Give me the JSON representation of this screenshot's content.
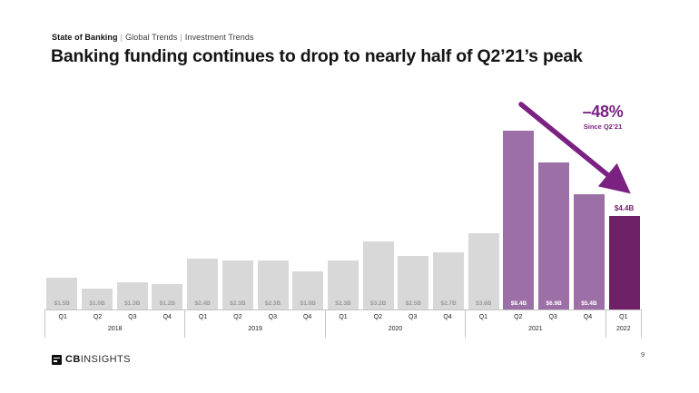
{
  "header": {
    "breadcrumb": {
      "bold": "State of Banking",
      "separator": "|",
      "items": [
        "Global Trends",
        "Investment Trends"
      ]
    },
    "title": "Banking funding continues to drop to nearly half of Q2’21’s peak"
  },
  "annotation": {
    "percent": "–48%",
    "caption": "Since Q2’21",
    "color": "#7a2182"
  },
  "footer": {
    "logo_bold": "CB",
    "logo_light": "INSIGHTS",
    "page_number": "9"
  },
  "chart_data": {
    "type": "bar",
    "unit": "USD billions",
    "ylim": [
      0,
      8.4
    ],
    "grid": false,
    "legend": "none",
    "categories": [
      "Q1 2018",
      "Q2 2018",
      "Q3 2018",
      "Q4 2018",
      "Q1 2019",
      "Q2 2019",
      "Q3 2019",
      "Q4 2019",
      "Q1 2020",
      "Q2 2020",
      "Q3 2020",
      "Q4 2020",
      "Q1 2021",
      "Q2 2021",
      "Q3 2021",
      "Q4 2021",
      "Q1 2022"
    ],
    "values": [
      1.5,
      1.0,
      1.3,
      1.2,
      2.4,
      2.3,
      2.3,
      1.8,
      2.3,
      3.2,
      2.5,
      2.7,
      3.6,
      8.4,
      6.9,
      5.4,
      4.4
    ],
    "bars": [
      {
        "year": "2018",
        "quarter": "Q1",
        "label": "$1.5B",
        "value": 1.5,
        "style": "gray"
      },
      {
        "year": "2018",
        "quarter": "Q2",
        "label": "$1.0B",
        "value": 1.0,
        "style": "gray"
      },
      {
        "year": "2018",
        "quarter": "Q3",
        "label": "$1.3B",
        "value": 1.3,
        "style": "gray"
      },
      {
        "year": "2018",
        "quarter": "Q4",
        "label": "$1.2B",
        "value": 1.2,
        "style": "gray"
      },
      {
        "year": "2019",
        "quarter": "Q1",
        "label": "$2.4B",
        "value": 2.4,
        "style": "gray"
      },
      {
        "year": "2019",
        "quarter": "Q2",
        "label": "$2.3B",
        "value": 2.3,
        "style": "gray"
      },
      {
        "year": "2019",
        "quarter": "Q3",
        "label": "$2.3B",
        "value": 2.3,
        "style": "gray"
      },
      {
        "year": "2019",
        "quarter": "Q4",
        "label": "$1.8B",
        "value": 1.8,
        "style": "gray"
      },
      {
        "year": "2020",
        "quarter": "Q1",
        "label": "$2.3B",
        "value": 2.3,
        "style": "gray"
      },
      {
        "year": "2020",
        "quarter": "Q2",
        "label": "$3.2B",
        "value": 3.2,
        "style": "gray"
      },
      {
        "year": "2020",
        "quarter": "Q3",
        "label": "$2.5B",
        "value": 2.5,
        "style": "gray"
      },
      {
        "year": "2020",
        "quarter": "Q4",
        "label": "$2.7B",
        "value": 2.7,
        "style": "gray"
      },
      {
        "year": "2021",
        "quarter": "Q1",
        "label": "$3.6B",
        "value": 3.6,
        "style": "gray"
      },
      {
        "year": "2021",
        "quarter": "Q2",
        "label": "$8.4B",
        "value": 8.4,
        "style": "purple"
      },
      {
        "year": "2021",
        "quarter": "Q3",
        "label": "$6.9B",
        "value": 6.9,
        "style": "purple"
      },
      {
        "year": "2021",
        "quarter": "Q4",
        "label": "$5.4B",
        "value": 5.4,
        "style": "purple"
      },
      {
        "year": "2022",
        "quarter": "Q1",
        "label": "$4.4B",
        "value": 4.4,
        "style": "dark"
      }
    ],
    "year_groups": [
      {
        "year": "2018",
        "quarters": [
          "Q1",
          "Q2",
          "Q3",
          "Q4"
        ]
      },
      {
        "year": "2019",
        "quarters": [
          "Q1",
          "Q2",
          "Q3",
          "Q4"
        ]
      },
      {
        "year": "2020",
        "quarters": [
          "Q1",
          "Q2",
          "Q3",
          "Q4"
        ]
      },
      {
        "year": "2021",
        "quarters": [
          "Q1",
          "Q2",
          "Q3",
          "Q4"
        ]
      },
      {
        "year": "2022",
        "quarters": [
          "Q1"
        ]
      }
    ],
    "styles": {
      "gray": {
        "bar": "#d8d8d8",
        "label": "#9b9b9b",
        "label_position": "inside"
      },
      "purple": {
        "bar": "#9c6fa6",
        "label": "#ffffff",
        "label_position": "inside"
      },
      "dark": {
        "bar": "#6e2167",
        "label": "#6e2167",
        "label_position": "above"
      }
    }
  }
}
